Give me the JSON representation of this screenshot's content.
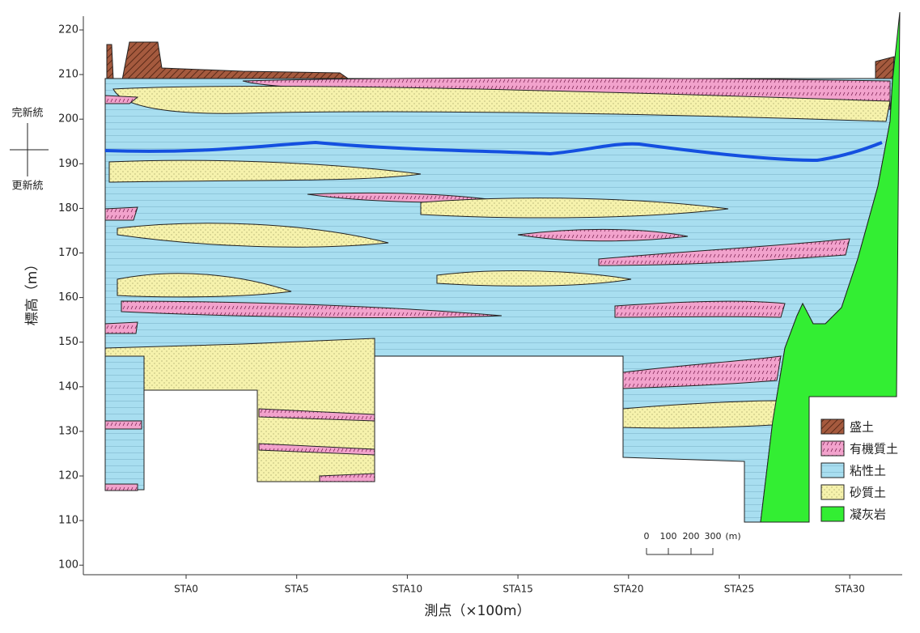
{
  "y_axis": {
    "label": "標高（m）",
    "ticks": [
      220,
      210,
      200,
      190,
      180,
      170,
      160,
      150,
      140,
      130,
      120,
      110,
      100
    ]
  },
  "x_axis": {
    "label": "測点（×100m）",
    "ticks": [
      "STA0",
      "STA5",
      "STA10",
      "STA15",
      "STA20",
      "STA25",
      "STA30"
    ]
  },
  "series_labels": {
    "upper": "完新統",
    "lower": "更新統"
  },
  "legend": [
    "盛土",
    "有機質土",
    "粘性土",
    "砂質土",
    "凝灰岩"
  ],
  "scale_bar": [
    "0",
    "100",
    "200",
    "300",
    "(m)"
  ]
}
